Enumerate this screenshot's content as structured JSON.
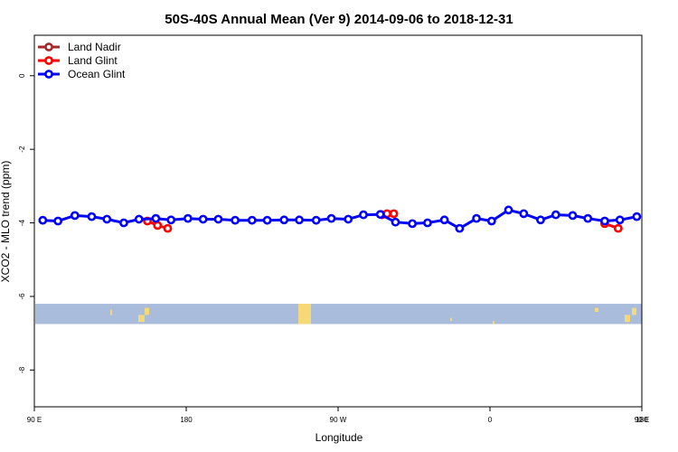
{
  "chart_data": {
    "type": "line",
    "title": "50S-40S Annual Mean (Ver 9)   2014-09-06 to 2018-12-31",
    "xlabel": "Longitude",
    "ylabel": "XCO2 - MLO trend (ppm)",
    "xlim": [
      90,
      450
    ],
    "ylim": [
      -9,
      1.1
    ],
    "x_ticks": [
      {
        "value": 90,
        "label": "90 E"
      },
      {
        "value": 180,
        "label": "180"
      },
      {
        "value": 270,
        "label": "90 W"
      },
      {
        "value": 360,
        "label": "0"
      },
      {
        "value": 450,
        "label": "90 E"
      },
      {
        "value": 540,
        "label": "180"
      }
    ],
    "y_ticks": [
      {
        "value": 0,
        "label": "0"
      },
      {
        "value": -2,
        "label": "-2"
      },
      {
        "value": -4,
        "label": "-4"
      },
      {
        "value": -6,
        "label": "-6"
      },
      {
        "value": -8,
        "label": "-8"
      }
    ],
    "legend_position": "top-left",
    "grid": false,
    "series": [
      {
        "name": "Land Nadir",
        "color": "#a52a2a",
        "x": [],
        "y": []
      },
      {
        "name": "Land Glint",
        "color": "#ff0000",
        "x": [
          157,
          163,
          169,
          296,
          299,
          303,
          428,
          436
        ],
        "y": [
          -3.95,
          -4.07,
          -4.15,
          -3.78,
          -3.75,
          -3.75,
          -4.02,
          -4.15
        ]
      },
      {
        "name": "Ocean Glint",
        "color": "#0000ff",
        "x": [
          95,
          104,
          114,
          124,
          133,
          143,
          152,
          162,
          171,
          181,
          190,
          199,
          209,
          219,
          228,
          238,
          247,
          257,
          266,
          276,
          285,
          295,
          304,
          314,
          323,
          333,
          342,
          352,
          361,
          371,
          380,
          390,
          399,
          409,
          418,
          428,
          437,
          447
        ],
        "y": [
          -3.93,
          -3.95,
          -3.8,
          -3.83,
          -3.9,
          -4.0,
          -3.9,
          -3.88,
          -3.92,
          -3.88,
          -3.9,
          -3.9,
          -3.93,
          -3.93,
          -3.93,
          -3.92,
          -3.92,
          -3.93,
          -3.88,
          -3.9,
          -3.78,
          -3.77,
          -3.98,
          -4.02,
          -4.0,
          -3.92,
          -4.15,
          -3.88,
          -3.95,
          -3.65,
          -3.75,
          -3.92,
          -3.78,
          -3.8,
          -3.88,
          -3.95,
          -3.92,
          -3.83
        ]
      }
    ],
    "land_mask": {
      "band_color": "#a9bcdc",
      "land_color": "#f6d977",
      "y_range": [
        -6.75,
        -6.2
      ]
    }
  }
}
